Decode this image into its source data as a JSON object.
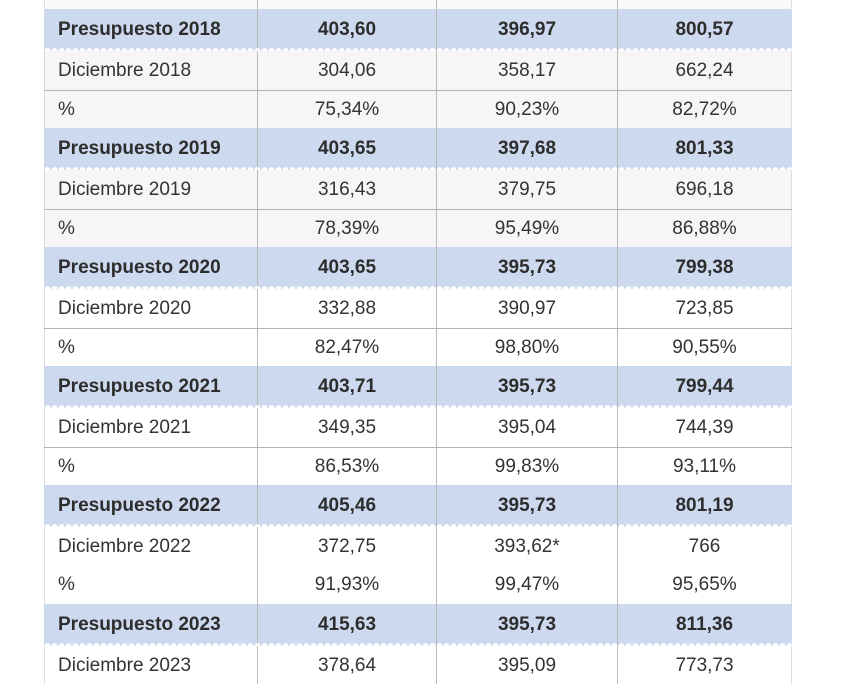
{
  "colors": {
    "band_blue": "#cdd9ee",
    "shade_gray": "#f6f6f7",
    "rule_gray": "#b3b3b3",
    "separator_gray": "#b9b9b9",
    "bold_text": "#2d2d2d",
    "regular_text": "#333333"
  },
  "table": {
    "rows": [
      {
        "style": "partial",
        "label": "",
        "values": [
          "",
          "",
          ""
        ],
        "shaded": false,
        "rule": false
      },
      {
        "style": "budget",
        "label": "Presupuesto 2018",
        "values": [
          "403,60",
          "396,97",
          "800,57"
        ],
        "shaded": false,
        "rule": false
      },
      {
        "style": "month",
        "label": "Diciembre 2018",
        "values": [
          "304,06",
          "358,17",
          "662,24"
        ],
        "shaded": true,
        "rule": false
      },
      {
        "style": "percent",
        "label": "%",
        "values": [
          "75,34%",
          "90,23%",
          "82,72%"
        ],
        "shaded": true,
        "rule": true
      },
      {
        "style": "budget",
        "label": "Presupuesto 2019",
        "values": [
          "403,65",
          "397,68",
          "801,33"
        ],
        "shaded": false,
        "rule": false
      },
      {
        "style": "month",
        "label": "Diciembre 2019",
        "values": [
          "316,43",
          "379,75",
          "696,18"
        ],
        "shaded": true,
        "rule": false
      },
      {
        "style": "percent",
        "label": "%",
        "values": [
          "78,39%",
          "95,49%",
          "86,88%"
        ],
        "shaded": true,
        "rule": true
      },
      {
        "style": "budget",
        "label": "Presupuesto 2020",
        "values": [
          "403,65",
          "395,73",
          "799,38"
        ],
        "shaded": false,
        "rule": false
      },
      {
        "style": "month",
        "label": "Diciembre 2020",
        "values": [
          "332,88",
          "390,97",
          "723,85"
        ],
        "shaded": false,
        "rule": false
      },
      {
        "style": "percent",
        "label": "%",
        "values": [
          "82,47%",
          "98,80%",
          "90,55%"
        ],
        "shaded": false,
        "rule": true
      },
      {
        "style": "budget",
        "label": "Presupuesto 2021",
        "values": [
          "403,71",
          "395,73",
          "799,44"
        ],
        "shaded": false,
        "rule": false
      },
      {
        "style": "month",
        "label": "Diciembre 2021",
        "values": [
          "349,35",
          "395,04",
          "744,39"
        ],
        "shaded": false,
        "rule": false
      },
      {
        "style": "percent",
        "label": "%",
        "values": [
          "86,53%",
          "99,83%",
          "93,11%"
        ],
        "shaded": false,
        "rule": true
      },
      {
        "style": "budget",
        "label": "Presupuesto 2022",
        "values": [
          "405,46",
          "395,73",
          "801,19"
        ],
        "shaded": false,
        "rule": false
      },
      {
        "style": "month",
        "label": "Diciembre 2022",
        "values": [
          "372,75",
          "393,62*",
          "766"
        ],
        "shaded": false,
        "rule": false
      },
      {
        "style": "percent",
        "label": "%",
        "values": [
          "91,93%",
          "99,47%",
          "95,65%"
        ],
        "shaded": false,
        "rule": false
      },
      {
        "style": "budget",
        "label": "Presupuesto 2023",
        "values": [
          "415,63",
          "395,73",
          "811,36"
        ],
        "shaded": false,
        "rule": false
      },
      {
        "style": "month",
        "label": "Diciembre 2023",
        "values": [
          "378,64",
          "395,09",
          "773,73"
        ],
        "shaded": false,
        "rule": false
      }
    ]
  }
}
